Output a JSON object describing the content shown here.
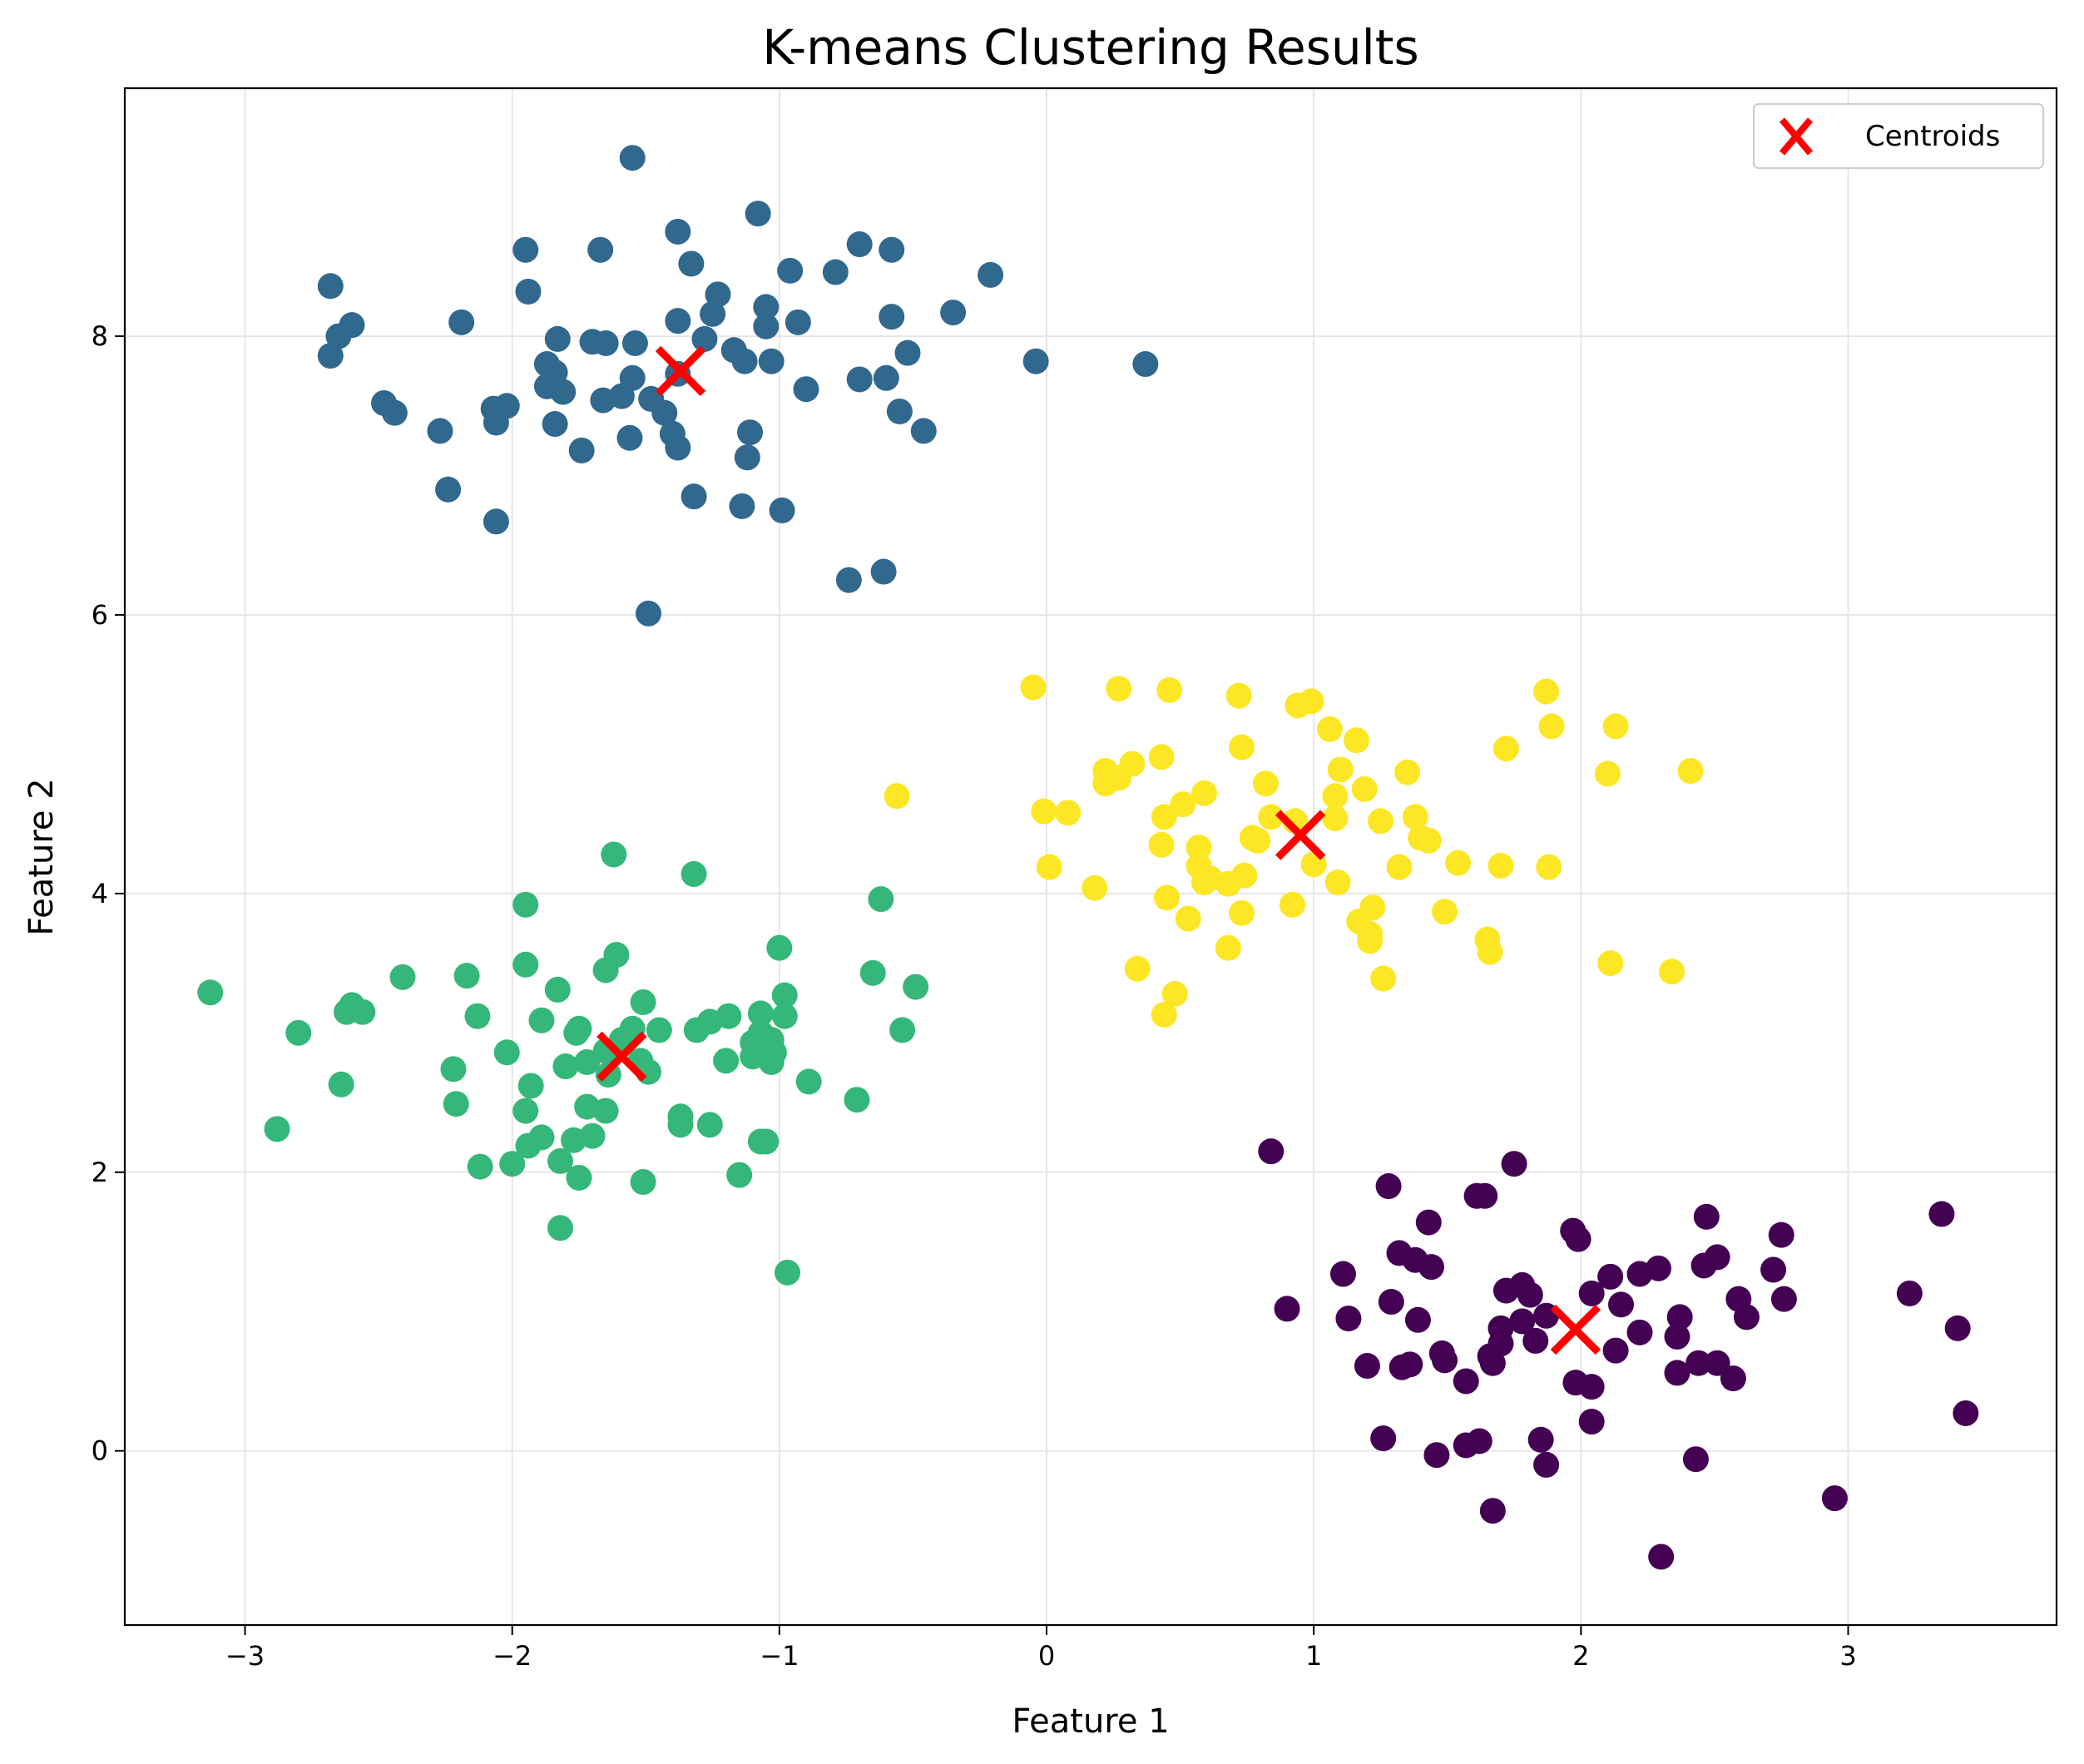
{
  "chart_data": {
    "type": "scatter",
    "title": "K-means Clustering Results",
    "xlabel": "Feature 1",
    "ylabel": "Feature 2",
    "xlim": [
      -3.45,
      3.78
    ],
    "ylim": [
      -1.25,
      9.78
    ],
    "xticks": [
      -3,
      -2,
      -1,
      0,
      1,
      2,
      3
    ],
    "yticks": [
      0,
      2,
      4,
      6,
      8
    ],
    "grid": true,
    "legend": {
      "placement": "top-right",
      "entries": [
        "Centroids"
      ]
    },
    "series": [
      {
        "color": "#31688e",
        "points": [
          [
            -1.55,
            9.28
          ],
          [
            -1.08,
            8.88
          ],
          [
            -1.95,
            8.62
          ],
          [
            -1.67,
            8.62
          ],
          [
            -1.38,
            8.75
          ],
          [
            -0.7,
            8.66
          ],
          [
            -0.58,
            8.62
          ],
          [
            -2.68,
            8.36
          ],
          [
            -2.6,
            8.08
          ],
          [
            -2.65,
            8.0
          ],
          [
            -2.68,
            7.86
          ],
          [
            -1.94,
            8.32
          ],
          [
            -1.33,
            8.52
          ],
          [
            -0.96,
            8.47
          ],
          [
            -0.79,
            8.46
          ],
          [
            -0.35,
            8.17
          ],
          [
            -0.21,
            8.44
          ],
          [
            -1.23,
            8.3
          ],
          [
            -1.25,
            8.16
          ],
          [
            -1.05,
            8.21
          ],
          [
            -1.05,
            8.07
          ],
          [
            -0.93,
            8.1
          ],
          [
            -0.58,
            8.14
          ],
          [
            -2.19,
            8.1
          ],
          [
            -1.38,
            8.11
          ],
          [
            -1.83,
            7.98
          ],
          [
            -1.7,
            7.96
          ],
          [
            -1.65,
            7.95
          ],
          [
            -1.54,
            7.95
          ],
          [
            -1.28,
            7.98
          ],
          [
            -1.17,
            7.9
          ],
          [
            -1.03,
            7.82
          ],
          [
            -1.13,
            7.82
          ],
          [
            -0.52,
            7.88
          ],
          [
            -0.04,
            7.82
          ],
          [
            0.37,
            7.8
          ],
          [
            -1.87,
            7.8
          ],
          [
            -1.84,
            7.74
          ],
          [
            -1.87,
            7.64
          ],
          [
            -1.81,
            7.6
          ],
          [
            -1.59,
            7.57
          ],
          [
            -1.55,
            7.7
          ],
          [
            -1.48,
            7.55
          ],
          [
            -1.43,
            7.45
          ],
          [
            -1.38,
            7.73
          ],
          [
            -0.9,
            7.62
          ],
          [
            -0.7,
            7.69
          ],
          [
            -0.6,
            7.7
          ],
          [
            -0.55,
            7.46
          ],
          [
            -0.46,
            7.32
          ],
          [
            -1.66,
            7.54
          ],
          [
            -2.48,
            7.52
          ],
          [
            -2.44,
            7.45
          ],
          [
            -2.07,
            7.48
          ],
          [
            -2.02,
            7.5
          ],
          [
            -2.06,
            7.38
          ],
          [
            -2.27,
            7.32
          ],
          [
            -1.84,
            7.37
          ],
          [
            -1.74,
            7.18
          ],
          [
            -1.56,
            7.27
          ],
          [
            -1.4,
            7.3
          ],
          [
            -1.38,
            7.2
          ],
          [
            -1.11,
            7.31
          ],
          [
            -1.12,
            7.13
          ],
          [
            -2.24,
            6.9
          ],
          [
            -1.32,
            6.85
          ],
          [
            -1.14,
            6.78
          ],
          [
            -0.99,
            6.75
          ],
          [
            -2.06,
            6.67
          ],
          [
            -0.74,
            6.25
          ],
          [
            -0.61,
            6.31
          ],
          [
            -1.49,
            6.01
          ]
        ]
      },
      {
        "color": "#fde725",
        "points": [
          [
            -0.05,
            5.48
          ],
          [
            0.27,
            5.47
          ],
          [
            0.46,
            5.46
          ],
          [
            0.72,
            5.42
          ],
          [
            0.94,
            5.35
          ],
          [
            0.99,
            5.38
          ],
          [
            1.87,
            5.45
          ],
          [
            1.89,
            5.2
          ],
          [
            2.13,
            5.2
          ],
          [
            1.06,
            5.18
          ],
          [
            1.16,
            5.1
          ],
          [
            0.73,
            5.05
          ],
          [
            1.72,
            5.04
          ],
          [
            0.22,
            4.88
          ],
          [
            0.32,
            4.93
          ],
          [
            0.43,
            4.98
          ],
          [
            0.22,
            4.79
          ],
          [
            0.27,
            4.83
          ],
          [
            1.1,
            4.89
          ],
          [
            1.35,
            4.87
          ],
          [
            2.1,
            4.86
          ],
          [
            2.41,
            4.88
          ],
          [
            0.82,
            4.79
          ],
          [
            1.19,
            4.75
          ],
          [
            0.59,
            4.72
          ],
          [
            0.51,
            4.64
          ],
          [
            0.44,
            4.55
          ],
          [
            0.84,
            4.55
          ],
          [
            0.93,
            4.52
          ],
          [
            1.08,
            4.54
          ],
          [
            1.08,
            4.7
          ],
          [
            1.25,
            4.52
          ],
          [
            1.38,
            4.55
          ],
          [
            -0.56,
            4.7
          ],
          [
            -0.01,
            4.59
          ],
          [
            0.08,
            4.58
          ],
          [
            0.77,
            4.4
          ],
          [
            0.79,
            4.38
          ],
          [
            0.57,
            4.33
          ],
          [
            0.43,
            4.35
          ],
          [
            1.4,
            4.4
          ],
          [
            1.43,
            4.38
          ],
          [
            0.57,
            4.2
          ],
          [
            0.59,
            4.08
          ],
          [
            0.61,
            4.11
          ],
          [
            0.74,
            4.13
          ],
          [
            0.68,
            4.07
          ],
          [
            1.0,
            4.21
          ],
          [
            1.09,
            4.08
          ],
          [
            1.32,
            4.19
          ],
          [
            1.54,
            4.22
          ],
          [
            1.7,
            4.2
          ],
          [
            1.88,
            4.19
          ],
          [
            0.01,
            4.19
          ],
          [
            0.18,
            4.04
          ],
          [
            0.45,
            3.97
          ],
          [
            0.53,
            3.82
          ],
          [
            0.73,
            3.86
          ],
          [
            0.92,
            3.92
          ],
          [
            1.17,
            3.8
          ],
          [
            1.22,
            3.9
          ],
          [
            1.49,
            3.87
          ],
          [
            1.65,
            3.67
          ],
          [
            1.66,
            3.58
          ],
          [
            1.21,
            3.71
          ],
          [
            1.21,
            3.66
          ],
          [
            0.68,
            3.61
          ],
          [
            0.34,
            3.46
          ],
          [
            1.26,
            3.39
          ],
          [
            2.11,
            3.5
          ],
          [
            2.34,
            3.44
          ],
          [
            0.48,
            3.28
          ],
          [
            0.44,
            3.13
          ]
        ]
      },
      {
        "color": "#35b779",
        "points": [
          [
            -1.62,
            4.28
          ],
          [
            -1.32,
            4.14
          ],
          [
            -0.62,
            3.96
          ],
          [
            -1.95,
            3.92
          ],
          [
            -1.0,
            3.61
          ],
          [
            -1.61,
            3.56
          ],
          [
            -1.95,
            3.49
          ],
          [
            -1.65,
            3.45
          ],
          [
            -0.65,
            3.43
          ],
          [
            -0.49,
            3.33
          ],
          [
            -2.41,
            3.4
          ],
          [
            -2.17,
            3.41
          ],
          [
            -3.13,
            3.29
          ],
          [
            -2.6,
            3.2
          ],
          [
            -2.62,
            3.15
          ],
          [
            -2.56,
            3.15
          ],
          [
            -1.83,
            3.31
          ],
          [
            -1.51,
            3.22
          ],
          [
            -0.98,
            3.27
          ],
          [
            -2.13,
            3.12
          ],
          [
            -1.89,
            3.09
          ],
          [
            -1.76,
            3.0
          ],
          [
            -1.75,
            3.03
          ],
          [
            -1.55,
            3.03
          ],
          [
            -1.45,
            3.02
          ],
          [
            -1.31,
            3.02
          ],
          [
            -1.26,
            3.08
          ],
          [
            -1.19,
            3.12
          ],
          [
            -1.07,
            3.14
          ],
          [
            -0.98,
            3.12
          ],
          [
            -1.07,
            3.0
          ],
          [
            -1.1,
            2.93
          ],
          [
            -1.03,
            2.95
          ],
          [
            -2.8,
            3.0
          ],
          [
            -0.54,
            3.02
          ],
          [
            -1.59,
            2.95
          ],
          [
            -1.65,
            2.87
          ],
          [
            -1.72,
            2.79
          ],
          [
            -1.8,
            2.76
          ],
          [
            -2.02,
            2.86
          ],
          [
            -1.52,
            2.8
          ],
          [
            -1.49,
            2.72
          ],
          [
            -1.2,
            2.8
          ],
          [
            -1.1,
            2.83
          ],
          [
            -1.02,
            2.86
          ],
          [
            -1.03,
            2.79
          ],
          [
            -2.22,
            2.74
          ],
          [
            -1.64,
            2.7
          ],
          [
            -1.93,
            2.62
          ],
          [
            -2.64,
            2.63
          ],
          [
            -0.89,
            2.65
          ],
          [
            -2.21,
            2.49
          ],
          [
            -1.72,
            2.47
          ],
          [
            -1.65,
            2.44
          ],
          [
            -1.95,
            2.44
          ],
          [
            -0.71,
            2.52
          ],
          [
            -1.37,
            2.4
          ],
          [
            -1.37,
            2.34
          ],
          [
            -1.26,
            2.34
          ],
          [
            -2.88,
            2.31
          ],
          [
            -1.89,
            2.25
          ],
          [
            -1.94,
            2.19
          ],
          [
            -1.77,
            2.23
          ],
          [
            -1.7,
            2.26
          ],
          [
            -1.07,
            2.22
          ],
          [
            -1.05,
            2.22
          ],
          [
            -1.82,
            2.08
          ],
          [
            -2.12,
            2.04
          ],
          [
            -2.0,
            2.06
          ],
          [
            -1.75,
            1.96
          ],
          [
            -1.51,
            1.93
          ],
          [
            -1.15,
            1.98
          ],
          [
            -1.82,
            1.6
          ],
          [
            -0.97,
            1.28
          ]
        ]
      },
      {
        "color": "#440154",
        "points": [
          [
            0.84,
            2.15
          ],
          [
            1.75,
            2.06
          ],
          [
            1.28,
            1.9
          ],
          [
            1.61,
            1.83
          ],
          [
            1.64,
            1.83
          ],
          [
            1.43,
            1.64
          ],
          [
            2.47,
            1.68
          ],
          [
            3.35,
            1.7
          ],
          [
            1.97,
            1.58
          ],
          [
            1.99,
            1.52
          ],
          [
            2.75,
            1.55
          ],
          [
            1.32,
            1.42
          ],
          [
            1.38,
            1.37
          ],
          [
            1.44,
            1.32
          ],
          [
            2.51,
            1.39
          ],
          [
            2.46,
            1.33
          ],
          [
            2.72,
            1.3
          ],
          [
            1.11,
            1.27
          ],
          [
            2.11,
            1.25
          ],
          [
            2.22,
            1.27
          ],
          [
            2.29,
            1.31
          ],
          [
            1.72,
            1.15
          ],
          [
            1.78,
            1.19
          ],
          [
            1.81,
            1.12
          ],
          [
            2.04,
            1.13
          ],
          [
            2.15,
            1.05
          ],
          [
            2.59,
            1.09
          ],
          [
            2.76,
            1.09
          ],
          [
            3.23,
            1.13
          ],
          [
            1.29,
            1.07
          ],
          [
            0.9,
            1.02
          ],
          [
            1.13,
            0.95
          ],
          [
            1.39,
            0.94
          ],
          [
            1.7,
            0.88
          ],
          [
            1.78,
            0.93
          ],
          [
            1.87,
            0.97
          ],
          [
            1.83,
            0.79
          ],
          [
            2.22,
            0.85
          ],
          [
            2.37,
            0.96
          ],
          [
            2.62,
            0.96
          ],
          [
            3.41,
            0.88
          ],
          [
            2.36,
            0.82
          ],
          [
            1.7,
            0.77
          ],
          [
            1.66,
            0.68
          ],
          [
            1.67,
            0.63
          ],
          [
            1.48,
            0.7
          ],
          [
            1.49,
            0.65
          ],
          [
            1.36,
            0.62
          ],
          [
            1.33,
            0.6
          ],
          [
            1.2,
            0.61
          ],
          [
            2.13,
            0.72
          ],
          [
            2.36,
            0.56
          ],
          [
            2.44,
            0.63
          ],
          [
            2.51,
            0.63
          ],
          [
            2.57,
            0.52
          ],
          [
            1.57,
            0.5
          ],
          [
            1.98,
            0.49
          ],
          [
            2.04,
            0.46
          ],
          [
            3.44,
            0.27
          ],
          [
            2.04,
            0.21
          ],
          [
            1.26,
            0.09
          ],
          [
            1.57,
            0.04
          ],
          [
            1.62,
            0.07
          ],
          [
            1.85,
            0.08
          ],
          [
            1.46,
            -0.03
          ],
          [
            1.87,
            -0.1
          ],
          [
            2.43,
            -0.06
          ],
          [
            1.67,
            -0.43
          ],
          [
            2.95,
            -0.34
          ],
          [
            2.3,
            -0.76
          ]
        ]
      }
    ],
    "centroids": [
      [
        -1.37,
        7.75
      ],
      [
        0.95,
        4.42
      ],
      [
        -1.59,
        2.83
      ],
      [
        1.98,
        0.87
      ]
    ]
  }
}
